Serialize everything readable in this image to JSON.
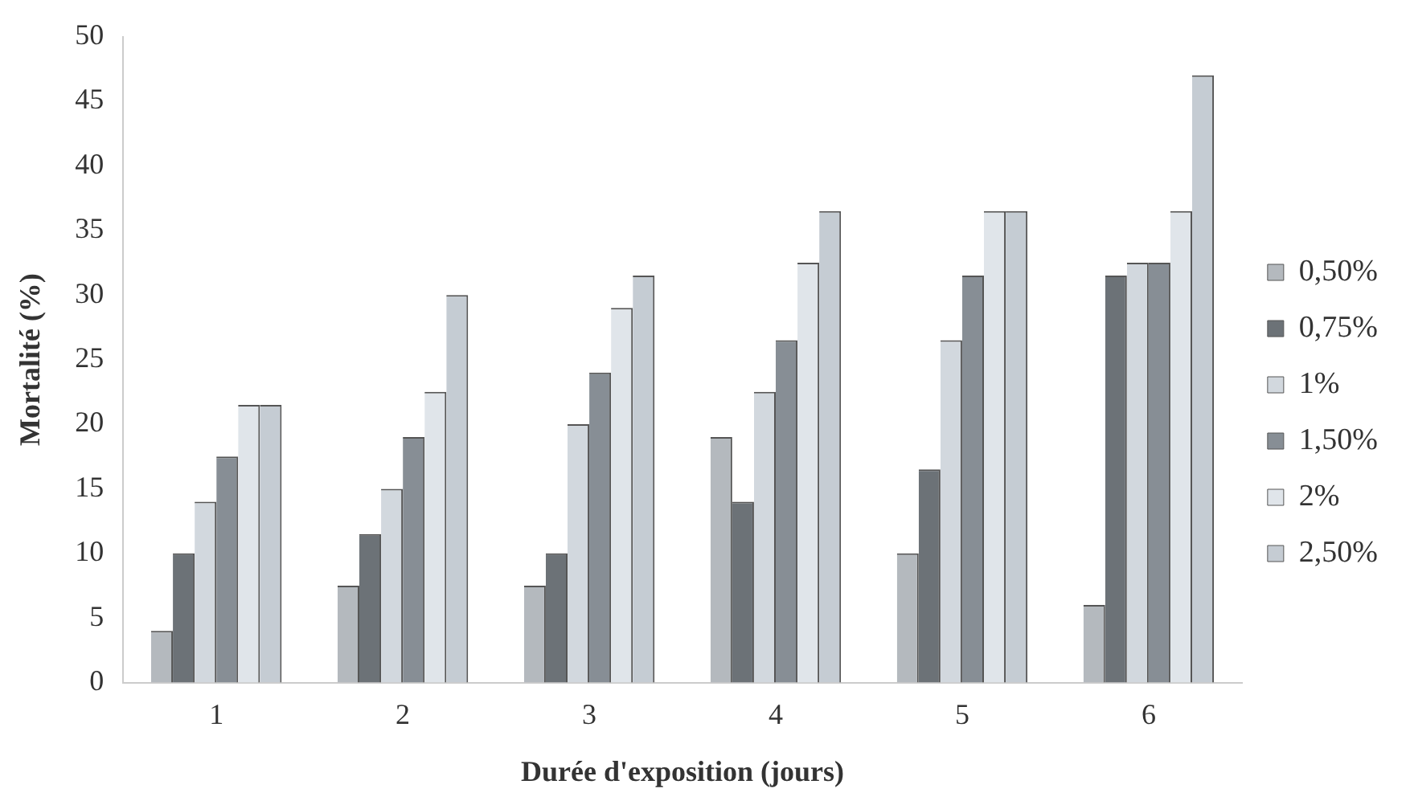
{
  "chart_data": {
    "type": "bar",
    "xlabel": "Durée d'exposition (jours)",
    "ylabel": "Mortalité (%)",
    "categories": [
      "1",
      "2",
      "3",
      "4",
      "5",
      "6"
    ],
    "series": [
      {
        "name": "0,50%",
        "color": "#b4b9be",
        "values": [
          4,
          7.5,
          7.5,
          19,
          10,
          6
        ]
      },
      {
        "name": "0,75%",
        "color": "#6c7277",
        "values": [
          10,
          11.5,
          10,
          14,
          16.5,
          31.5
        ]
      },
      {
        "name": "1%",
        "color": "#d2d8de",
        "values": [
          14,
          15,
          20,
          22.5,
          26.5,
          32.5
        ]
      },
      {
        "name": "1,50%",
        "color": "#878e95",
        "values": [
          17.5,
          19,
          24,
          26.5,
          31.5,
          32.5
        ]
      },
      {
        "name": "2%",
        "color": "#e0e5ea",
        "values": [
          21.5,
          22.5,
          29,
          32.5,
          36.5,
          36.5
        ]
      },
      {
        "name": "2,50%",
        "color": "#c5ccd3",
        "values": [
          21.5,
          30,
          31.5,
          36.5,
          36.5,
          47
        ]
      }
    ],
    "ylim": [
      0,
      50
    ],
    "yticks": [
      0,
      5,
      10,
      15,
      20,
      25,
      30,
      35,
      40,
      45,
      50
    ],
    "grid": false,
    "legend": "right"
  }
}
